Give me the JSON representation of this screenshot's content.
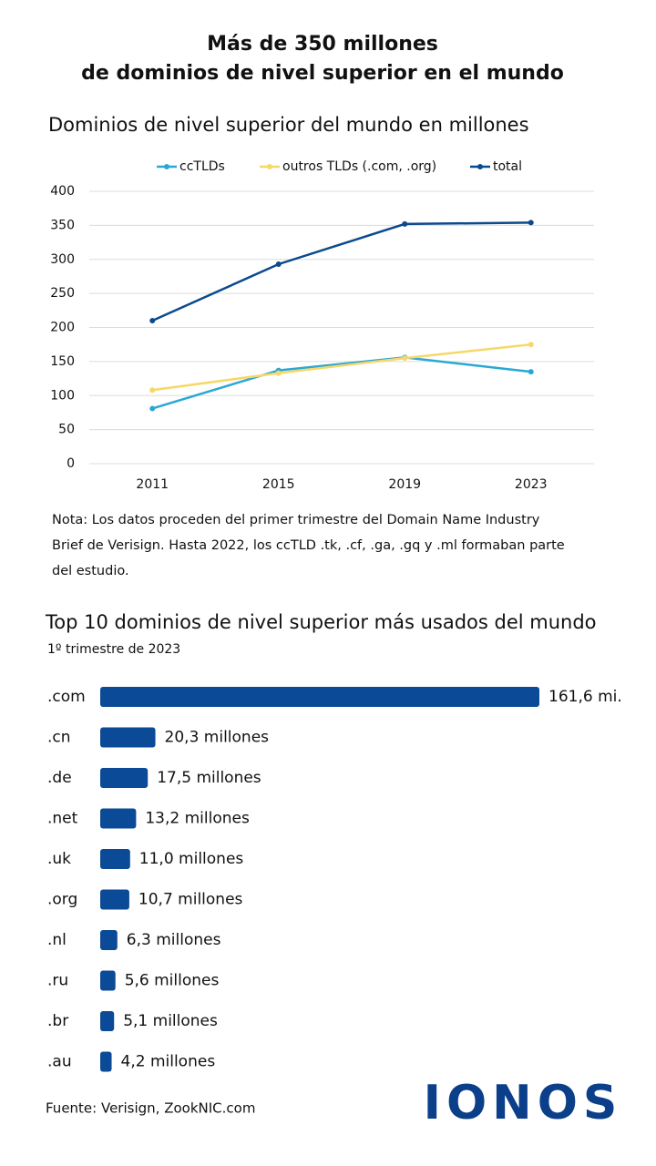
{
  "title_lines": [
    "Más de 350 millones",
    "de dominios de nivel superior en el mundo"
  ],
  "note_lines": [
    "Nota: Los datos proceden del primer trimestre del Domain Name Industry",
    "Brief de Verisign. Hasta 2022, los ccTLD .tk, .cf, .ga, .gq y .ml formaban parte",
    "del estudio."
  ],
  "source": "Fuente: Verisign, ZookNIC.com",
  "logo": "IONOS",
  "chart_data": [
    {
      "type": "line",
      "title": "Dominios de nivel superior del mundo en millones",
      "categories": [
        "2011",
        "2015",
        "2019",
        "2023"
      ],
      "series": [
        {
          "name": "ccTLDs",
          "color": "#2aa8d5",
          "values": [
            81,
            137,
            156,
            135
          ]
        },
        {
          "name": "outros TLDs (.com, .org)",
          "color": "#f6d868",
          "values": [
            108,
            133,
            155,
            175
          ]
        },
        {
          "name": "total",
          "color": "#0a4a8e",
          "values": [
            210,
            293,
            352,
            354
          ]
        }
      ],
      "ylim": [
        0,
        400
      ],
      "yticks": [
        0,
        50,
        100,
        150,
        200,
        250,
        300,
        350,
        400
      ],
      "grid": true,
      "legend": "top"
    },
    {
      "type": "bar",
      "orientation": "horizontal",
      "title": "Top 10 dominios de nivel superior más usados del mundo",
      "subtitle": "1º trimestre de 2023",
      "categories": [
        ".com",
        ".cn",
        ".de",
        ".net",
        ".uk",
        ".org",
        ".nl",
        ".ru",
        ".br",
        ".au"
      ],
      "values": [
        161.6,
        20.3,
        17.5,
        13.2,
        11.0,
        10.7,
        6.3,
        5.6,
        5.1,
        4.2
      ],
      "value_labels": [
        "161,6 mi.",
        "20,3 millones",
        "17,5 millones",
        "13,2 millones",
        "11,0 millones",
        "10,7 millones",
        "6,3 millones",
        "5,6 millones",
        "5,1 millones",
        "4,2 millones"
      ],
      "color": "#0b4a96"
    }
  ]
}
